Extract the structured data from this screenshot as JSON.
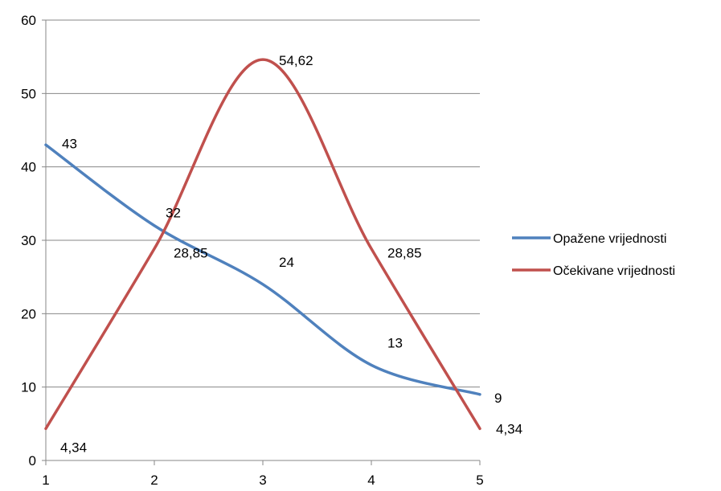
{
  "chart_data": {
    "type": "line",
    "x": [
      1,
      2,
      3,
      4,
      5
    ],
    "xlim": [
      1,
      5
    ],
    "ylim": [
      0,
      60
    ],
    "y_ticks": [
      0,
      10,
      20,
      30,
      40,
      50,
      60
    ],
    "x_ticks": [
      1,
      2,
      3,
      4,
      5
    ],
    "grid": "horizontal",
    "legend_position": "right",
    "smooth": true,
    "series": [
      {
        "name": "Opažene vrijednosti",
        "color": "#4f81bd",
        "values": [
          43,
          32,
          24,
          13,
          9
        ],
        "labels": [
          "43",
          "32",
          "24",
          "13",
          "9"
        ]
      },
      {
        "name": "Očekivane vrijednosti",
        "color": "#c0504d",
        "values": [
          4.34,
          28.85,
          54.62,
          28.85,
          4.34
        ],
        "labels": [
          "4,34",
          "28,85",
          "54,62",
          "28,85",
          "4,34"
        ]
      }
    ],
    "gridline_color": "#878787",
    "axis_color": "#878787"
  }
}
